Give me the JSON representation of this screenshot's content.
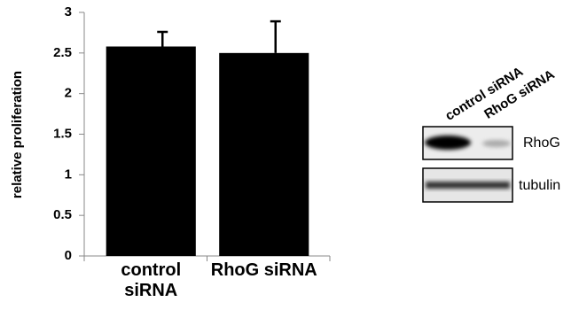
{
  "chart_data": {
    "type": "bar",
    "y_label": "relative proliferation",
    "categories": [
      "control siRNA",
      "RhoG siRNA"
    ],
    "values": [
      2.58,
      2.5
    ],
    "errors": [
      0.18,
      0.39
    ],
    "color": "#000000",
    "ylim": [
      0,
      3
    ],
    "yticks": [
      0,
      0.5,
      1,
      1.5,
      2,
      2.5,
      3
    ],
    "grid": false
  },
  "blot": {
    "lanes": [
      "control siRNA",
      "RhoG siRNA"
    ],
    "rows": [
      "RhoG",
      "tubulin"
    ]
  }
}
